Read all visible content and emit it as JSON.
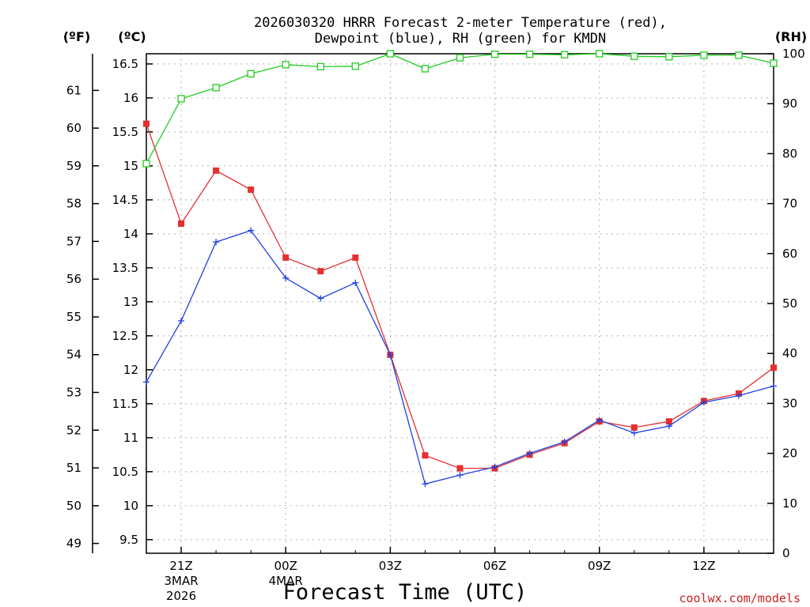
{
  "chart_data": {
    "type": "line",
    "title_line1": "2026030320 HRRR Forecast 2-meter Temperature (red),",
    "title_line2": "Dewpoint (blue), RH (green) for KMDN",
    "unit_labels": {
      "fahrenheit": "(ºF)",
      "celsius": "(ºC)",
      "rh": "(RH)"
    },
    "xlabel": "Forecast Time (UTC)",
    "credit": "coolwx.com/models",
    "hours": [
      0,
      1,
      2,
      3,
      4,
      5,
      6,
      7,
      8,
      9,
      10,
      11,
      12,
      13,
      14,
      15,
      16,
      17,
      18
    ],
    "x_ticks": [
      {
        "hour": 1,
        "lines": [
          "21Z",
          "3MAR",
          "2026"
        ]
      },
      {
        "hour": 4,
        "lines": [
          "00Z",
          "4MAR"
        ]
      },
      {
        "hour": 7,
        "lines": [
          "03Z"
        ]
      },
      {
        "hour": 10,
        "lines": [
          "06Z"
        ]
      },
      {
        "hour": 13,
        "lines": [
          "09Z"
        ]
      },
      {
        "hour": 16,
        "lines": [
          "12Z"
        ]
      }
    ],
    "celsius_axis": {
      "min": 9.3,
      "max": 16.65,
      "ticks": [
        "9.5",
        "10",
        "10.5",
        "11",
        "11.5",
        "12",
        "12.5",
        "13",
        "13.5",
        "14",
        "14.5",
        "15",
        "15.5",
        "16",
        "16.5"
      ]
    },
    "fahrenheit_ticks": [
      "49",
      "50",
      "51",
      "52",
      "53",
      "54",
      "55",
      "56",
      "57",
      "58",
      "59",
      "60",
      "61"
    ],
    "rh_axis": {
      "min": 0,
      "max": 100,
      "ticks": [
        "0",
        "10",
        "20",
        "30",
        "40",
        "50",
        "60",
        "70",
        "80",
        "90",
        "100"
      ]
    },
    "series": [
      {
        "name": "Temperature",
        "unit": "C",
        "color": "#e53030",
        "marker": "filled-square",
        "values": [
          15.62,
          14.15,
          14.93,
          14.65,
          13.65,
          13.45,
          13.65,
          12.22,
          10.74,
          10.55,
          10.55,
          10.75,
          10.92,
          11.24,
          11.15,
          11.24,
          11.54,
          11.65,
          12.03
        ]
      },
      {
        "name": "Dewpoint",
        "unit": "C",
        "color": "#2040e0",
        "marker": "plus",
        "values": [
          11.82,
          12.72,
          13.88,
          14.05,
          13.35,
          13.05,
          13.28,
          12.22,
          10.32,
          10.45,
          10.57,
          10.77,
          10.94,
          11.26,
          11.07,
          11.17,
          11.52,
          11.62,
          11.76
        ]
      },
      {
        "name": "RH",
        "unit": "%",
        "color": "#20cc20",
        "marker": "open-square",
        "values": [
          78,
          91,
          93.2,
          96,
          97.8,
          97.4,
          97.5,
          100,
          97,
          99.2,
          99.9,
          99.9,
          99.8,
          100,
          99.5,
          99.4,
          99.7,
          99.7,
          98.1
        ]
      }
    ]
  }
}
